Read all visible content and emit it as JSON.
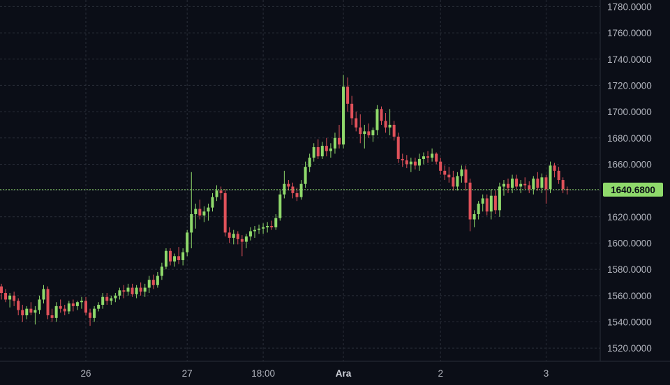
{
  "chart_data": {
    "type": "candlestick",
    "last_price_label": "1640.6800",
    "last_price": 1640.68,
    "ylim": [
      1510,
      1785
    ],
    "y_ticks": [
      {
        "value": 1520,
        "label": "1520.0000"
      },
      {
        "value": 1540,
        "label": "1540.0000"
      },
      {
        "value": 1560,
        "label": "1560.0000"
      },
      {
        "value": 1580,
        "label": "1580.0000"
      },
      {
        "value": 1600,
        "label": "1600.0000"
      },
      {
        "value": 1620,
        "label": "1620.0000"
      },
      {
        "value": 1640,
        "label": "1640.0000"
      },
      {
        "value": 1660,
        "label": "1660.0000"
      },
      {
        "value": 1680,
        "label": "1680.0000"
      },
      {
        "value": 1700,
        "label": "1700.0000"
      },
      {
        "value": 1720,
        "label": "1720.0000"
      },
      {
        "value": 1740,
        "label": "1740.0000"
      },
      {
        "value": 1760,
        "label": "1760.0000"
      },
      {
        "value": 1780,
        "label": "1780.0000"
      }
    ],
    "x_ticks": [
      {
        "index": 20,
        "label": "26",
        "bold": false
      },
      {
        "index": 44,
        "label": "27",
        "bold": false
      },
      {
        "index": 62,
        "label": "18:00",
        "bold": false
      },
      {
        "index": 81,
        "label": "Ara",
        "bold": true
      },
      {
        "index": 104,
        "label": "2",
        "bold": false
      },
      {
        "index": 129,
        "label": "3",
        "bold": false
      }
    ],
    "up_color": "#8fd96b",
    "down_color": "#e0515a",
    "candles": [
      [
        1567,
        1569,
        1557,
        1562
      ],
      [
        1562,
        1565,
        1555,
        1557
      ],
      [
        1557,
        1562,
        1551,
        1560
      ],
      [
        1560,
        1563,
        1552,
        1556
      ],
      [
        1556,
        1558,
        1545,
        1549
      ],
      [
        1549,
        1553,
        1540,
        1545
      ],
      [
        1545,
        1552,
        1542,
        1550
      ],
      [
        1550,
        1555,
        1545,
        1547
      ],
      [
        1547,
        1552,
        1538,
        1549
      ],
      [
        1549,
        1560,
        1546,
        1557
      ],
      [
        1557,
        1568,
        1554,
        1565
      ],
      [
        1565,
        1567,
        1542,
        1545
      ],
      [
        1545,
        1550,
        1540,
        1543
      ],
      [
        1543,
        1555,
        1540,
        1552
      ],
      [
        1552,
        1557,
        1547,
        1550
      ],
      [
        1550,
        1553,
        1545,
        1548
      ],
      [
        1548,
        1556,
        1546,
        1554
      ],
      [
        1554,
        1557,
        1548,
        1552
      ],
      [
        1552,
        1556,
        1549,
        1555
      ],
      [
        1555,
        1559,
        1550,
        1556
      ],
      [
        1556,
        1559,
        1545,
        1547
      ],
      [
        1547,
        1550,
        1537,
        1543
      ],
      [
        1543,
        1552,
        1540,
        1550
      ],
      [
        1550,
        1555,
        1548,
        1553
      ],
      [
        1553,
        1562,
        1550,
        1559
      ],
      [
        1559,
        1562,
        1553,
        1556
      ],
      [
        1556,
        1560,
        1553,
        1558
      ],
      [
        1558,
        1562,
        1555,
        1560
      ],
      [
        1560,
        1566,
        1557,
        1564
      ],
      [
        1564,
        1568,
        1558,
        1563
      ],
      [
        1563,
        1569,
        1560,
        1566
      ],
      [
        1566,
        1569,
        1559,
        1561
      ],
      [
        1561,
        1568,
        1558,
        1566
      ],
      [
        1566,
        1570,
        1560,
        1563
      ],
      [
        1563,
        1569,
        1559,
        1566
      ],
      [
        1566,
        1575,
        1562,
        1572
      ],
      [
        1572,
        1576,
        1565,
        1568
      ],
      [
        1568,
        1578,
        1566,
        1575
      ],
      [
        1575,
        1585,
        1572,
        1582
      ],
      [
        1582,
        1596,
        1580,
        1594
      ],
      [
        1594,
        1596,
        1583,
        1586
      ],
      [
        1586,
        1592,
        1582,
        1590
      ],
      [
        1590,
        1597,
        1584,
        1587
      ],
      [
        1587,
        1596,
        1583,
        1593
      ],
      [
        1593,
        1610,
        1590,
        1608
      ],
      [
        1608,
        1654,
        1596,
        1622
      ],
      [
        1622,
        1630,
        1611,
        1626
      ],
      [
        1626,
        1633,
        1618,
        1621
      ],
      [
        1621,
        1628,
        1616,
        1624
      ],
      [
        1624,
        1630,
        1617,
        1627
      ],
      [
        1627,
        1638,
        1624,
        1635
      ],
      [
        1635,
        1644,
        1632,
        1640
      ],
      [
        1640,
        1643,
        1633,
        1638
      ],
      [
        1638,
        1641,
        1605,
        1608
      ],
      [
        1608,
        1612,
        1600,
        1604
      ],
      [
        1604,
        1610,
        1599,
        1607
      ],
      [
        1607,
        1609,
        1599,
        1603
      ],
      [
        1603,
        1606,
        1590,
        1601
      ],
      [
        1601,
        1607,
        1596,
        1605
      ],
      [
        1605,
        1612,
        1602,
        1609
      ],
      [
        1609,
        1613,
        1604,
        1610
      ],
      [
        1610,
        1614,
        1607,
        1611
      ],
      [
        1611,
        1615,
        1607,
        1612
      ],
      [
        1612,
        1616,
        1608,
        1613
      ],
      [
        1613,
        1617,
        1610,
        1612
      ],
      [
        1612,
        1622,
        1610,
        1619
      ],
      [
        1619,
        1640,
        1617,
        1637
      ],
      [
        1637,
        1655,
        1634,
        1645
      ],
      [
        1645,
        1648,
        1640,
        1643
      ],
      [
        1643,
        1646,
        1634,
        1638
      ],
      [
        1638,
        1642,
        1632,
        1635
      ],
      [
        1635,
        1648,
        1633,
        1645
      ],
      [
        1645,
        1662,
        1642,
        1658
      ],
      [
        1658,
        1668,
        1654,
        1665
      ],
      [
        1665,
        1676,
        1662,
        1673
      ],
      [
        1673,
        1679,
        1664,
        1666
      ],
      [
        1666,
        1677,
        1664,
        1674
      ],
      [
        1674,
        1680,
        1666,
        1670
      ],
      [
        1670,
        1676,
        1665,
        1672
      ],
      [
        1672,
        1684,
        1668,
        1680
      ],
      [
        1680,
        1690,
        1672,
        1675
      ],
      [
        1675,
        1728,
        1672,
        1719
      ],
      [
        1719,
        1726,
        1700,
        1706
      ],
      [
        1706,
        1712,
        1690,
        1695
      ],
      [
        1695,
        1700,
        1685,
        1688
      ],
      [
        1688,
        1698,
        1676,
        1683
      ],
      [
        1683,
        1690,
        1672,
        1685
      ],
      [
        1685,
        1691,
        1680,
        1682
      ],
      [
        1682,
        1688,
        1677,
        1686
      ],
      [
        1686,
        1705,
        1682,
        1702
      ],
      [
        1702,
        1704,
        1690,
        1693
      ],
      [
        1693,
        1699,
        1684,
        1688
      ],
      [
        1688,
        1702,
        1682,
        1690
      ],
      [
        1690,
        1693,
        1678,
        1681
      ],
      [
        1681,
        1684,
        1661,
        1664
      ],
      [
        1664,
        1668,
        1658,
        1663
      ],
      [
        1663,
        1667,
        1657,
        1660
      ],
      [
        1660,
        1665,
        1654,
        1662
      ],
      [
        1662,
        1665,
        1656,
        1659
      ],
      [
        1659,
        1668,
        1655,
        1664
      ],
      [
        1664,
        1669,
        1660,
        1666
      ],
      [
        1666,
        1670,
        1661,
        1665
      ],
      [
        1665,
        1672,
        1662,
        1668
      ],
      [
        1668,
        1669,
        1660,
        1662
      ],
      [
        1662,
        1665,
        1652,
        1655
      ],
      [
        1655,
        1659,
        1648,
        1652
      ],
      [
        1652,
        1658,
        1646,
        1650
      ],
      [
        1650,
        1655,
        1640,
        1643
      ],
      [
        1643,
        1654,
        1640,
        1651
      ],
      [
        1651,
        1659,
        1646,
        1656
      ],
      [
        1656,
        1659,
        1640,
        1646
      ],
      [
        1646,
        1649,
        1609,
        1618
      ],
      [
        1618,
        1625,
        1612,
        1622
      ],
      [
        1622,
        1632,
        1618,
        1630
      ],
      [
        1630,
        1637,
        1624,
        1634
      ],
      [
        1634,
        1637,
        1621,
        1624
      ],
      [
        1624,
        1641,
        1618,
        1636
      ],
      [
        1636,
        1640,
        1622,
        1625
      ],
      [
        1625,
        1646,
        1620,
        1643
      ],
      [
        1643,
        1648,
        1636,
        1645
      ],
      [
        1645,
        1649,
        1638,
        1642
      ],
      [
        1642,
        1652,
        1638,
        1649
      ],
      [
        1649,
        1652,
        1641,
        1643
      ],
      [
        1643,
        1648,
        1638,
        1645
      ],
      [
        1645,
        1650,
        1641,
        1644
      ],
      [
        1644,
        1647,
        1638,
        1641
      ],
      [
        1641,
        1651,
        1637,
        1649
      ],
      [
        1649,
        1654,
        1640,
        1642
      ],
      [
        1642,
        1653,
        1638,
        1650
      ],
      [
        1650,
        1652,
        1630,
        1641
      ],
      [
        1641,
        1662,
        1638,
        1659
      ],
      [
        1659,
        1661,
        1650,
        1655
      ],
      [
        1655,
        1658,
        1645,
        1648
      ],
      [
        1648,
        1650,
        1638,
        1641
      ],
      [
        1641,
        1643,
        1637,
        1640.68
      ]
    ]
  }
}
